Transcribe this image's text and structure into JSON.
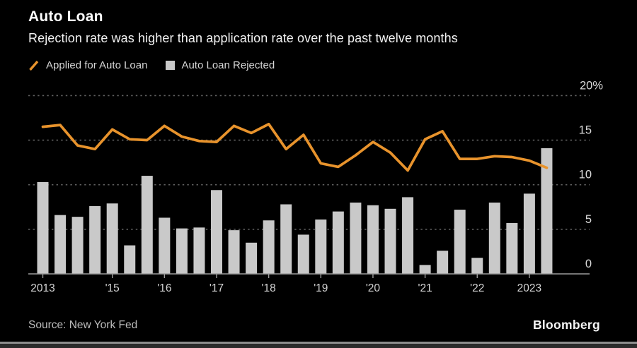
{
  "header": {
    "title": "Auto Loan",
    "subtitle": "Rejection rate was higher than application rate over the past twelve months"
  },
  "legend": {
    "applied_label": "Applied for Auto Loan",
    "rejected_label": "Auto Loan Rejected"
  },
  "footer": {
    "source": "Source: New York Fed",
    "brand": "Bloomberg"
  },
  "colors": {
    "background": "#000000",
    "line": "#e8932c",
    "bar": "#c9c9c9",
    "grid": "#616161",
    "axis": "#9c9c9c",
    "tick_text": "#d4d4d4",
    "y_label_text": "#dadada"
  },
  "chart_data": {
    "type": "bar",
    "title": "Auto Loan",
    "subtitle": "Rejection rate was higher than application rate over the past twelve months",
    "ylabel": "Percent",
    "ylim": [
      0,
      20
    ],
    "y_ticks": [
      0,
      5,
      10,
      15,
      20
    ],
    "y_tick_labels": [
      "0",
      "5",
      "10",
      "15",
      "20%"
    ],
    "grid": "dotted-horizontal",
    "legend_position": "top-left",
    "x_tick_labels": [
      "2013",
      "'15",
      "'16",
      "'17",
      "'18",
      "'19",
      "'20",
      "'21",
      "'22",
      "2023"
    ],
    "x_tick_indices": [
      0,
      4,
      7,
      10,
      13,
      16,
      19,
      22,
      25,
      28
    ],
    "series": [
      {
        "name": "Applied for Auto Loan",
        "type": "line",
        "values": [
          16.5,
          16.7,
          14.4,
          14.0,
          16.2,
          15.1,
          15.0,
          16.6,
          15.4,
          14.9,
          14.8,
          16.6,
          15.8,
          16.8,
          14.0,
          15.6,
          12.4,
          12.0,
          13.3,
          14.8,
          13.6,
          11.6,
          15.1,
          16.0,
          12.9,
          12.9,
          13.2,
          13.1,
          12.7,
          11.9
        ]
      },
      {
        "name": "Auto Loan Rejected",
        "type": "bar",
        "values": [
          10.3,
          6.6,
          6.4,
          7.6,
          7.9,
          3.2,
          11.0,
          6.3,
          5.1,
          5.2,
          9.4,
          4.9,
          3.5,
          6.0,
          7.8,
          4.4,
          6.1,
          7.0,
          8.0,
          7.7,
          7.3,
          8.6,
          1.0,
          2.6,
          7.2,
          1.8,
          8.0,
          5.7,
          9.0,
          14.1
        ]
      }
    ]
  }
}
